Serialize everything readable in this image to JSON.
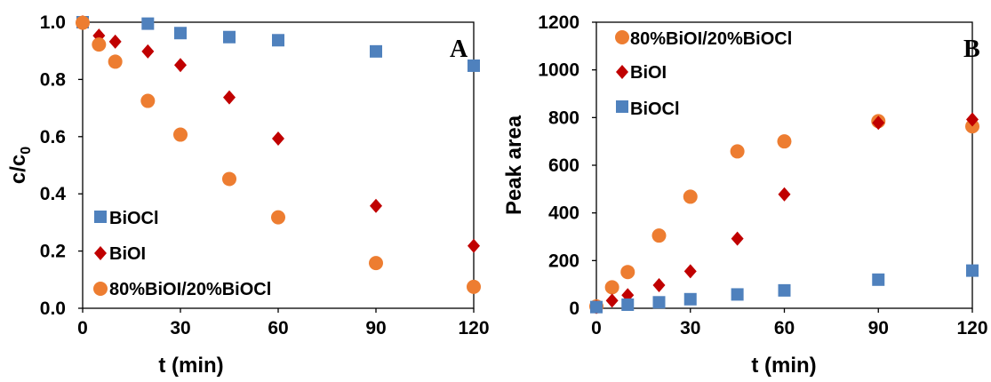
{
  "chart_data": [
    {
      "type": "scatter",
      "panel_label": "A",
      "xlabel": "t (min)",
      "ylabel_main": "c/c",
      "ylabel_sub": "0",
      "xlim": [
        0,
        120
      ],
      "ylim": [
        0,
        1.0
      ],
      "xticks": [
        0,
        30,
        60,
        90,
        120
      ],
      "yticks": [
        0.0,
        0.2,
        0.4,
        0.6,
        0.8,
        1.0
      ],
      "xtick_labels": [
        "0",
        "30",
        "60",
        "90",
        "120"
      ],
      "ytick_labels": [
        "0.0",
        "0.2",
        "0.4",
        "0.6",
        "0.8",
        "1.0"
      ],
      "grid": false,
      "legend_position": "bottom-left",
      "series": [
        {
          "name": "BiOCl",
          "marker": "square",
          "color": "#4f81bd",
          "x": [
            0,
            20,
            30,
            45,
            60,
            90,
            120
          ],
          "y": [
            1.0,
            0.995,
            0.962,
            0.948,
            0.937,
            0.898,
            0.848
          ]
        },
        {
          "name": "BiOI",
          "marker": "diamond",
          "color": "#c00000",
          "x": [
            0,
            5,
            10,
            20,
            30,
            45,
            60,
            90,
            120
          ],
          "y": [
            1.0,
            0.953,
            0.932,
            0.898,
            0.85,
            0.737,
            0.593,
            0.358,
            0.218
          ]
        },
        {
          "name": "80%BiOI/20%BiOCl",
          "marker": "circle",
          "color": "#ed7d31",
          "x": [
            0,
            5,
            10,
            20,
            30,
            45,
            60,
            90,
            120
          ],
          "y": [
            0.998,
            0.922,
            0.862,
            0.725,
            0.607,
            0.452,
            0.318,
            0.158,
            0.075
          ]
        }
      ]
    },
    {
      "type": "scatter",
      "panel_label": "B",
      "xlabel": "t (min)",
      "ylabel": "Peak area",
      "xlim": [
        0,
        120
      ],
      "ylim": [
        0,
        1200
      ],
      "xticks": [
        0,
        30,
        60,
        90,
        120
      ],
      "yticks": [
        0,
        200,
        400,
        600,
        800,
        1000,
        1200
      ],
      "xtick_labels": [
        "0",
        "30",
        "60",
        "90",
        "120"
      ],
      "ytick_labels": [
        "0",
        "200",
        "400",
        "600",
        "800",
        "1000",
        "1200"
      ],
      "grid": false,
      "legend_position": "top-left",
      "series": [
        {
          "name": "80%BiOI/20%BiOCl",
          "marker": "circle",
          "color": "#ed7d31",
          "x": [
            0,
            5,
            10,
            20,
            30,
            45,
            60,
            90,
            120
          ],
          "y": [
            8,
            88,
            152,
            305,
            468,
            658,
            700,
            785,
            763
          ]
        },
        {
          "name": "BiOI",
          "marker": "diamond",
          "color": "#c00000",
          "x": [
            0,
            5,
            10,
            20,
            30,
            45,
            60,
            90,
            120
          ],
          "y": [
            5,
            32,
            55,
            97,
            155,
            292,
            478,
            778,
            792
          ]
        },
        {
          "name": "BiOCl",
          "marker": "square",
          "color": "#4f81bd",
          "x": [
            0,
            10,
            20,
            30,
            45,
            60,
            90,
            120
          ],
          "y": [
            5,
            15,
            25,
            38,
            58,
            75,
            120,
            158
          ]
        }
      ]
    }
  ]
}
